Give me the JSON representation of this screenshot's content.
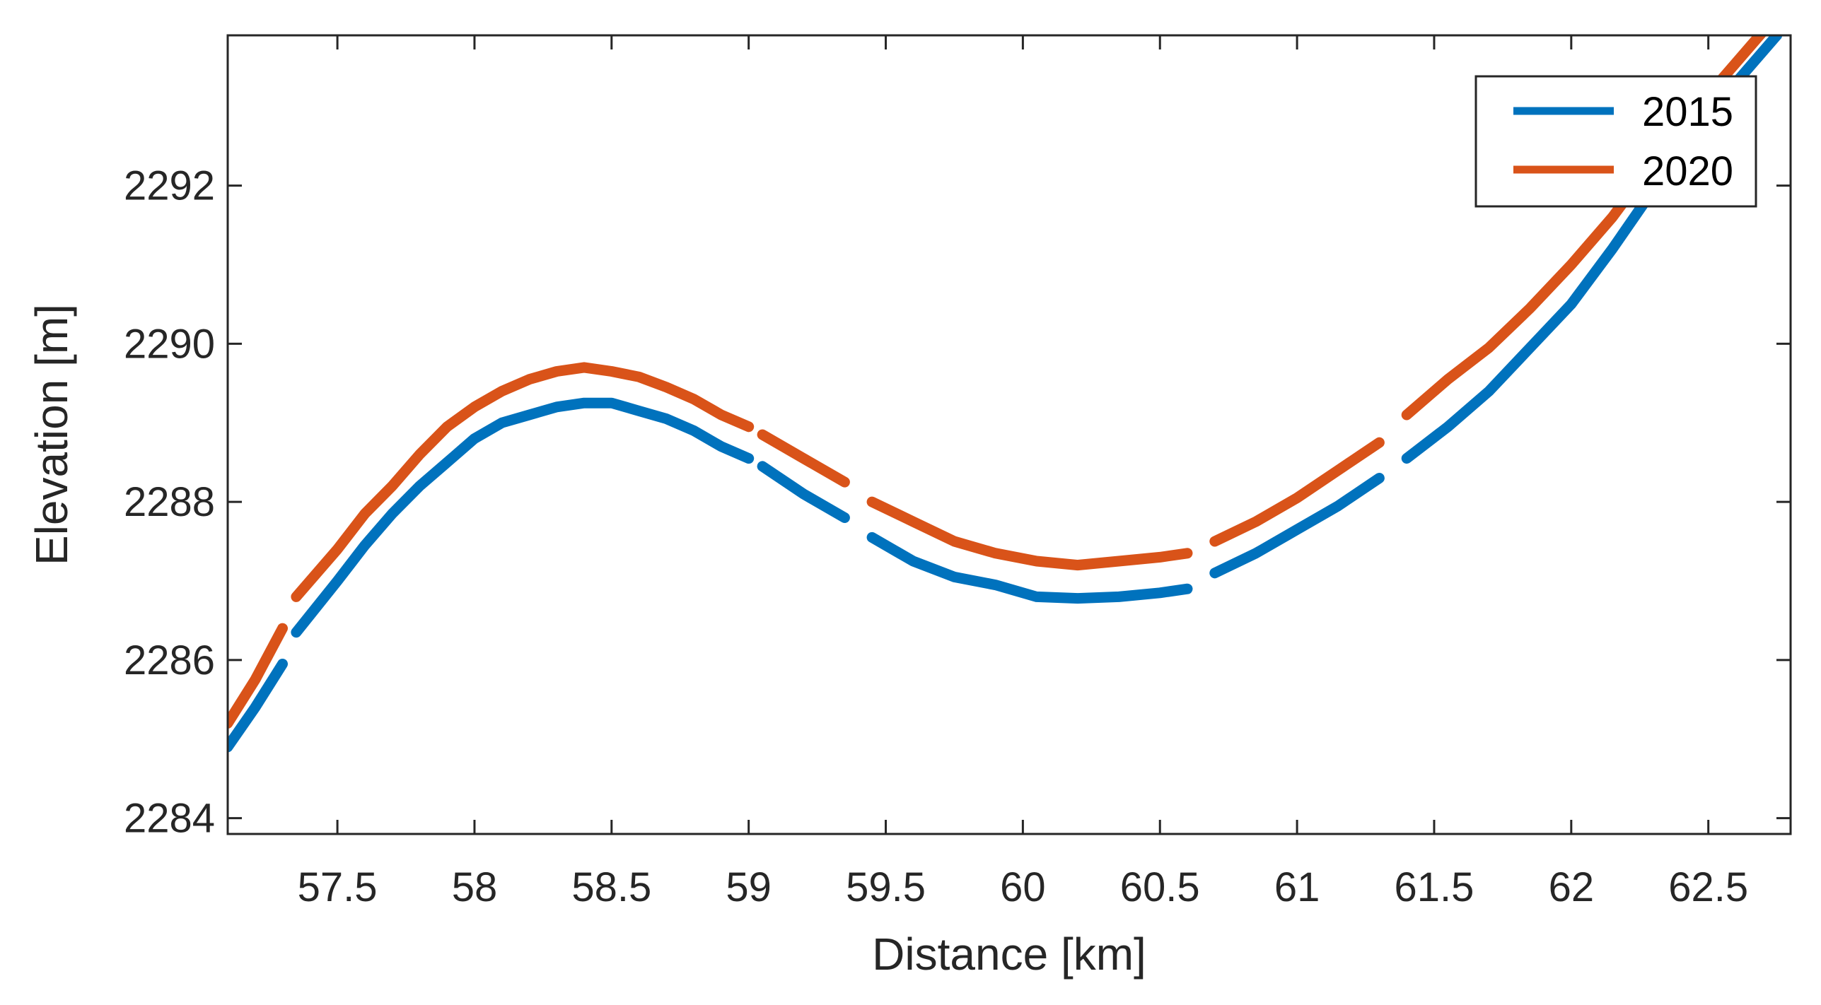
{
  "chart_data": {
    "type": "line",
    "title": "",
    "xlabel": "Distance [km]",
    "ylabel": "Elevation [m]",
    "xlim": [
      57.1,
      62.8
    ],
    "ylim": [
      2283.8,
      2293.9
    ],
    "xticks": [
      57.5,
      58,
      58.5,
      59,
      59.5,
      60,
      60.5,
      61,
      61.5,
      62,
      62.5
    ],
    "xtick_labels": [
      "57.5",
      "58",
      "58.5",
      "59",
      "59.5",
      "60",
      "60.5",
      "61",
      "61.5",
      "62",
      "62.5"
    ],
    "yticks": [
      2284,
      2286,
      2288,
      2290,
      2292
    ],
    "ytick_labels": [
      "2284",
      "2286",
      "2288",
      "2290",
      "2292"
    ],
    "grid": false,
    "legend": {
      "location": "top-right",
      "entries": [
        "2015",
        "2020"
      ]
    },
    "series": [
      {
        "name": "2015",
        "color": "#0072BD",
        "segments": [
          [
            [
              57.1,
              2284.9
            ],
            [
              57.2,
              2285.4
            ],
            [
              57.3,
              2285.95
            ]
          ],
          [
            [
              57.35,
              2286.35
            ],
            [
              57.5,
              2287.0
            ],
            [
              57.6,
              2287.45
            ],
            [
              57.7,
              2287.85
            ],
            [
              57.8,
              2288.2
            ],
            [
              57.9,
              2288.5
            ],
            [
              58.0,
              2288.8
            ],
            [
              58.1,
              2289.0
            ],
            [
              58.2,
              2289.1
            ],
            [
              58.3,
              2289.2
            ],
            [
              58.4,
              2289.25
            ],
            [
              58.5,
              2289.25
            ],
            [
              58.6,
              2289.15
            ],
            [
              58.7,
              2289.05
            ],
            [
              58.8,
              2288.9
            ],
            [
              58.9,
              2288.7
            ],
            [
              59.0,
              2288.55
            ]
          ],
          [
            [
              59.05,
              2288.45
            ],
            [
              59.2,
              2288.1
            ],
            [
              59.35,
              2287.8
            ]
          ],
          [
            [
              59.45,
              2287.55
            ],
            [
              59.6,
              2287.25
            ],
            [
              59.75,
              2287.05
            ],
            [
              59.9,
              2286.95
            ],
            [
              60.05,
              2286.8
            ],
            [
              60.2,
              2286.78
            ],
            [
              60.35,
              2286.8
            ],
            [
              60.5,
              2286.85
            ],
            [
              60.6,
              2286.9
            ]
          ],
          [
            [
              60.7,
              2287.1
            ],
            [
              60.85,
              2287.35
            ],
            [
              61.0,
              2287.65
            ],
            [
              61.15,
              2287.95
            ],
            [
              61.3,
              2288.3
            ]
          ],
          [
            [
              61.4,
              2288.55
            ],
            [
              61.55,
              2288.95
            ],
            [
              61.7,
              2289.4
            ],
            [
              61.85,
              2289.95
            ],
            [
              62.0,
              2290.5
            ],
            [
              62.15,
              2291.2
            ],
            [
              62.3,
              2291.95
            ],
            [
              62.45,
              2292.7
            ],
            [
              62.6,
              2293.3
            ],
            [
              62.75,
              2293.9
            ]
          ]
        ]
      },
      {
        "name": "2020",
        "color": "#D95319",
        "segments": [
          [
            [
              57.1,
              2285.2
            ],
            [
              57.2,
              2285.75
            ],
            [
              57.3,
              2286.4
            ]
          ],
          [
            [
              57.35,
              2286.8
            ],
            [
              57.5,
              2287.4
            ],
            [
              57.6,
              2287.85
            ],
            [
              57.7,
              2288.2
            ],
            [
              57.8,
              2288.6
            ],
            [
              57.9,
              2288.95
            ],
            [
              58.0,
              2289.2
            ],
            [
              58.1,
              2289.4
            ],
            [
              58.2,
              2289.55
            ],
            [
              58.3,
              2289.65
            ],
            [
              58.4,
              2289.7
            ],
            [
              58.5,
              2289.65
            ],
            [
              58.6,
              2289.58
            ],
            [
              58.7,
              2289.45
            ],
            [
              58.8,
              2289.3
            ],
            [
              58.9,
              2289.1
            ],
            [
              59.0,
              2288.95
            ]
          ],
          [
            [
              59.05,
              2288.85
            ],
            [
              59.2,
              2288.55
            ],
            [
              59.35,
              2288.25
            ]
          ],
          [
            [
              59.45,
              2288.0
            ],
            [
              59.6,
              2287.75
            ],
            [
              59.75,
              2287.5
            ],
            [
              59.9,
              2287.35
            ],
            [
              60.05,
              2287.25
            ],
            [
              60.2,
              2287.2
            ],
            [
              60.35,
              2287.25
            ],
            [
              60.5,
              2287.3
            ],
            [
              60.6,
              2287.35
            ]
          ],
          [
            [
              60.7,
              2287.5
            ],
            [
              60.85,
              2287.75
            ],
            [
              61.0,
              2288.05
            ],
            [
              61.15,
              2288.4
            ],
            [
              61.3,
              2288.75
            ]
          ],
          [
            [
              61.4,
              2289.1
            ],
            [
              61.55,
              2289.55
            ],
            [
              61.7,
              2289.95
            ],
            [
              61.85,
              2290.45
            ],
            [
              62.0,
              2291.0
            ],
            [
              62.15,
              2291.6
            ],
            [
              62.3,
              2292.3
            ],
            [
              62.45,
              2292.95
            ],
            [
              62.6,
              2293.55
            ],
            [
              62.7,
              2293.95
            ]
          ]
        ]
      }
    ]
  }
}
